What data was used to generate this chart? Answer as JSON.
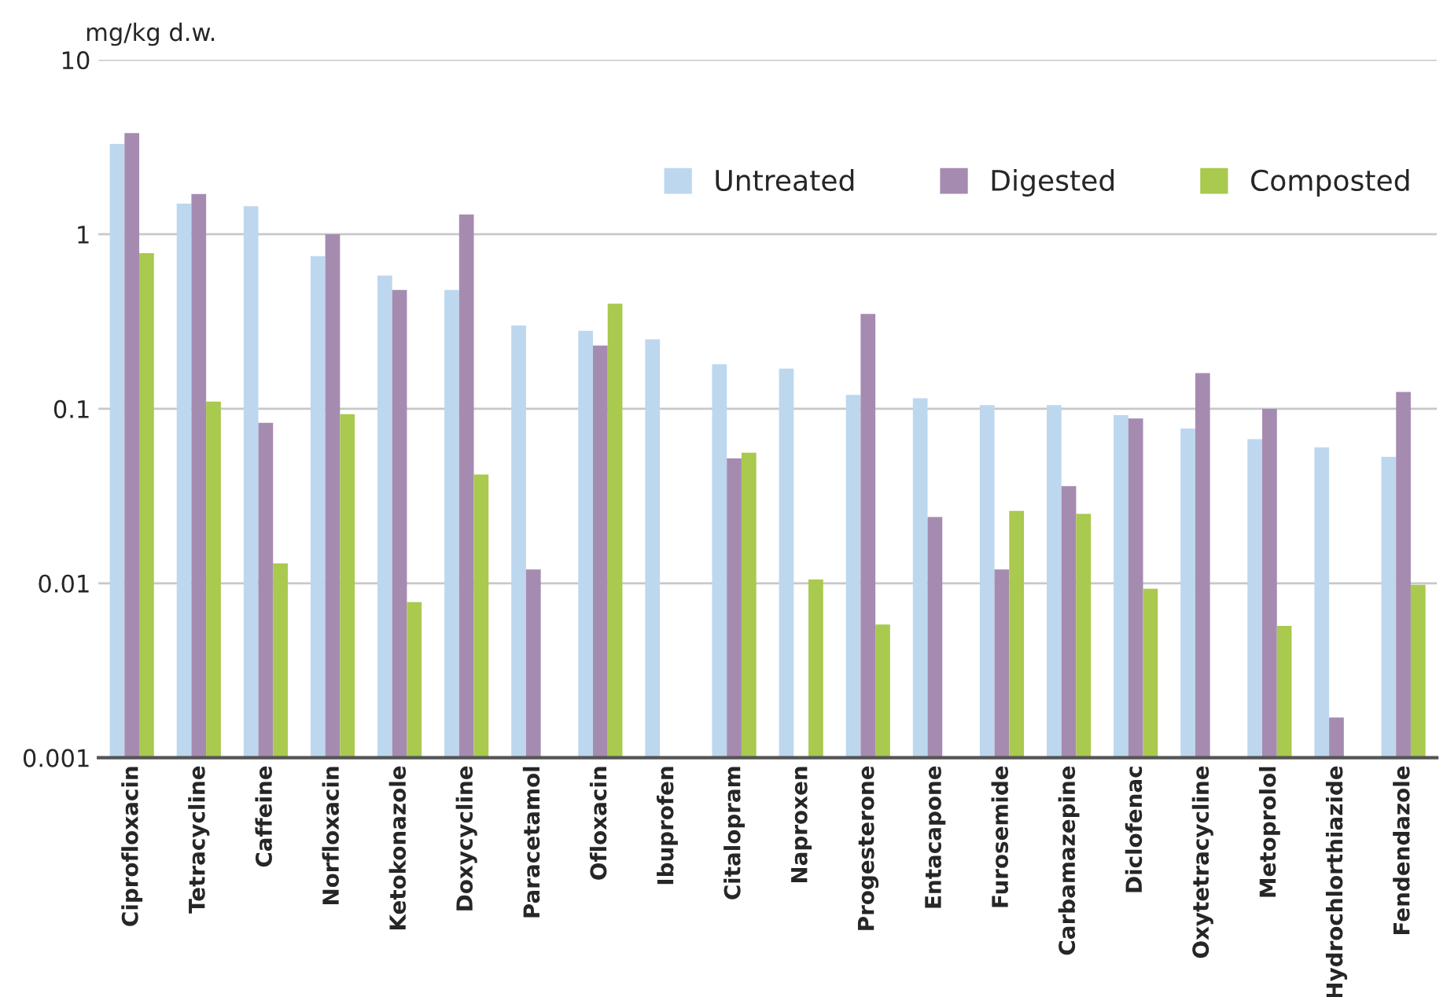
{
  "chart_data": {
    "type": "bar",
    "ylabel": "mg/kg d.w.",
    "log": true,
    "grid": "y",
    "legend": "top right",
    "categories": [
      "Ciprofloxacin",
      "Tetracycline",
      "Caffeine",
      "Norfloxacin",
      "Ketokonazole",
      "Doxycycline",
      "Paracetamol",
      "Ofloxacin",
      "Ibuprofen",
      "Citalopram",
      "Naproxen",
      "Progesterone",
      "Entacapone",
      "Furosemide",
      "Carbamazepine",
      "Diclofenac",
      "Oxytetracycline",
      "Metoprolol",
      "Hydrochlorthiazide",
      "Fendendazole"
    ],
    "series": [
      {
        "name": "Untreated",
        "color": "#bdd7ee",
        "values": [
          3.3,
          1.5,
          1.45,
          0.75,
          0.58,
          0.48,
          0.3,
          0.28,
          0.25,
          0.18,
          0.17,
          0.12,
          0.115,
          0.105,
          0.105,
          0.092,
          0.077,
          0.067,
          0.06,
          0.053
        ]
      },
      {
        "name": "Digested",
        "color": "#a68bb0",
        "values": [
          3.8,
          1.7,
          0.083,
          1.0,
          0.48,
          1.3,
          0.012,
          0.23,
          null,
          0.052,
          null,
          0.35,
          0.024,
          0.012,
          0.036,
          0.088,
          0.16,
          0.1,
          0.0017,
          0.125
        ]
      },
      {
        "name": "Composted",
        "color": "#a9c94f",
        "values": [
          0.78,
          0.11,
          0.013,
          0.093,
          0.0078,
          0.042,
          null,
          0.4,
          null,
          0.056,
          0.0105,
          0.0058,
          null,
          0.026,
          0.025,
          0.0093,
          null,
          0.0057,
          null,
          0.0098
        ]
      }
    ],
    "ylim": [
      0.001,
      10
    ],
    "yticks": [
      0.001,
      0.01,
      0.1,
      1,
      10
    ]
  }
}
